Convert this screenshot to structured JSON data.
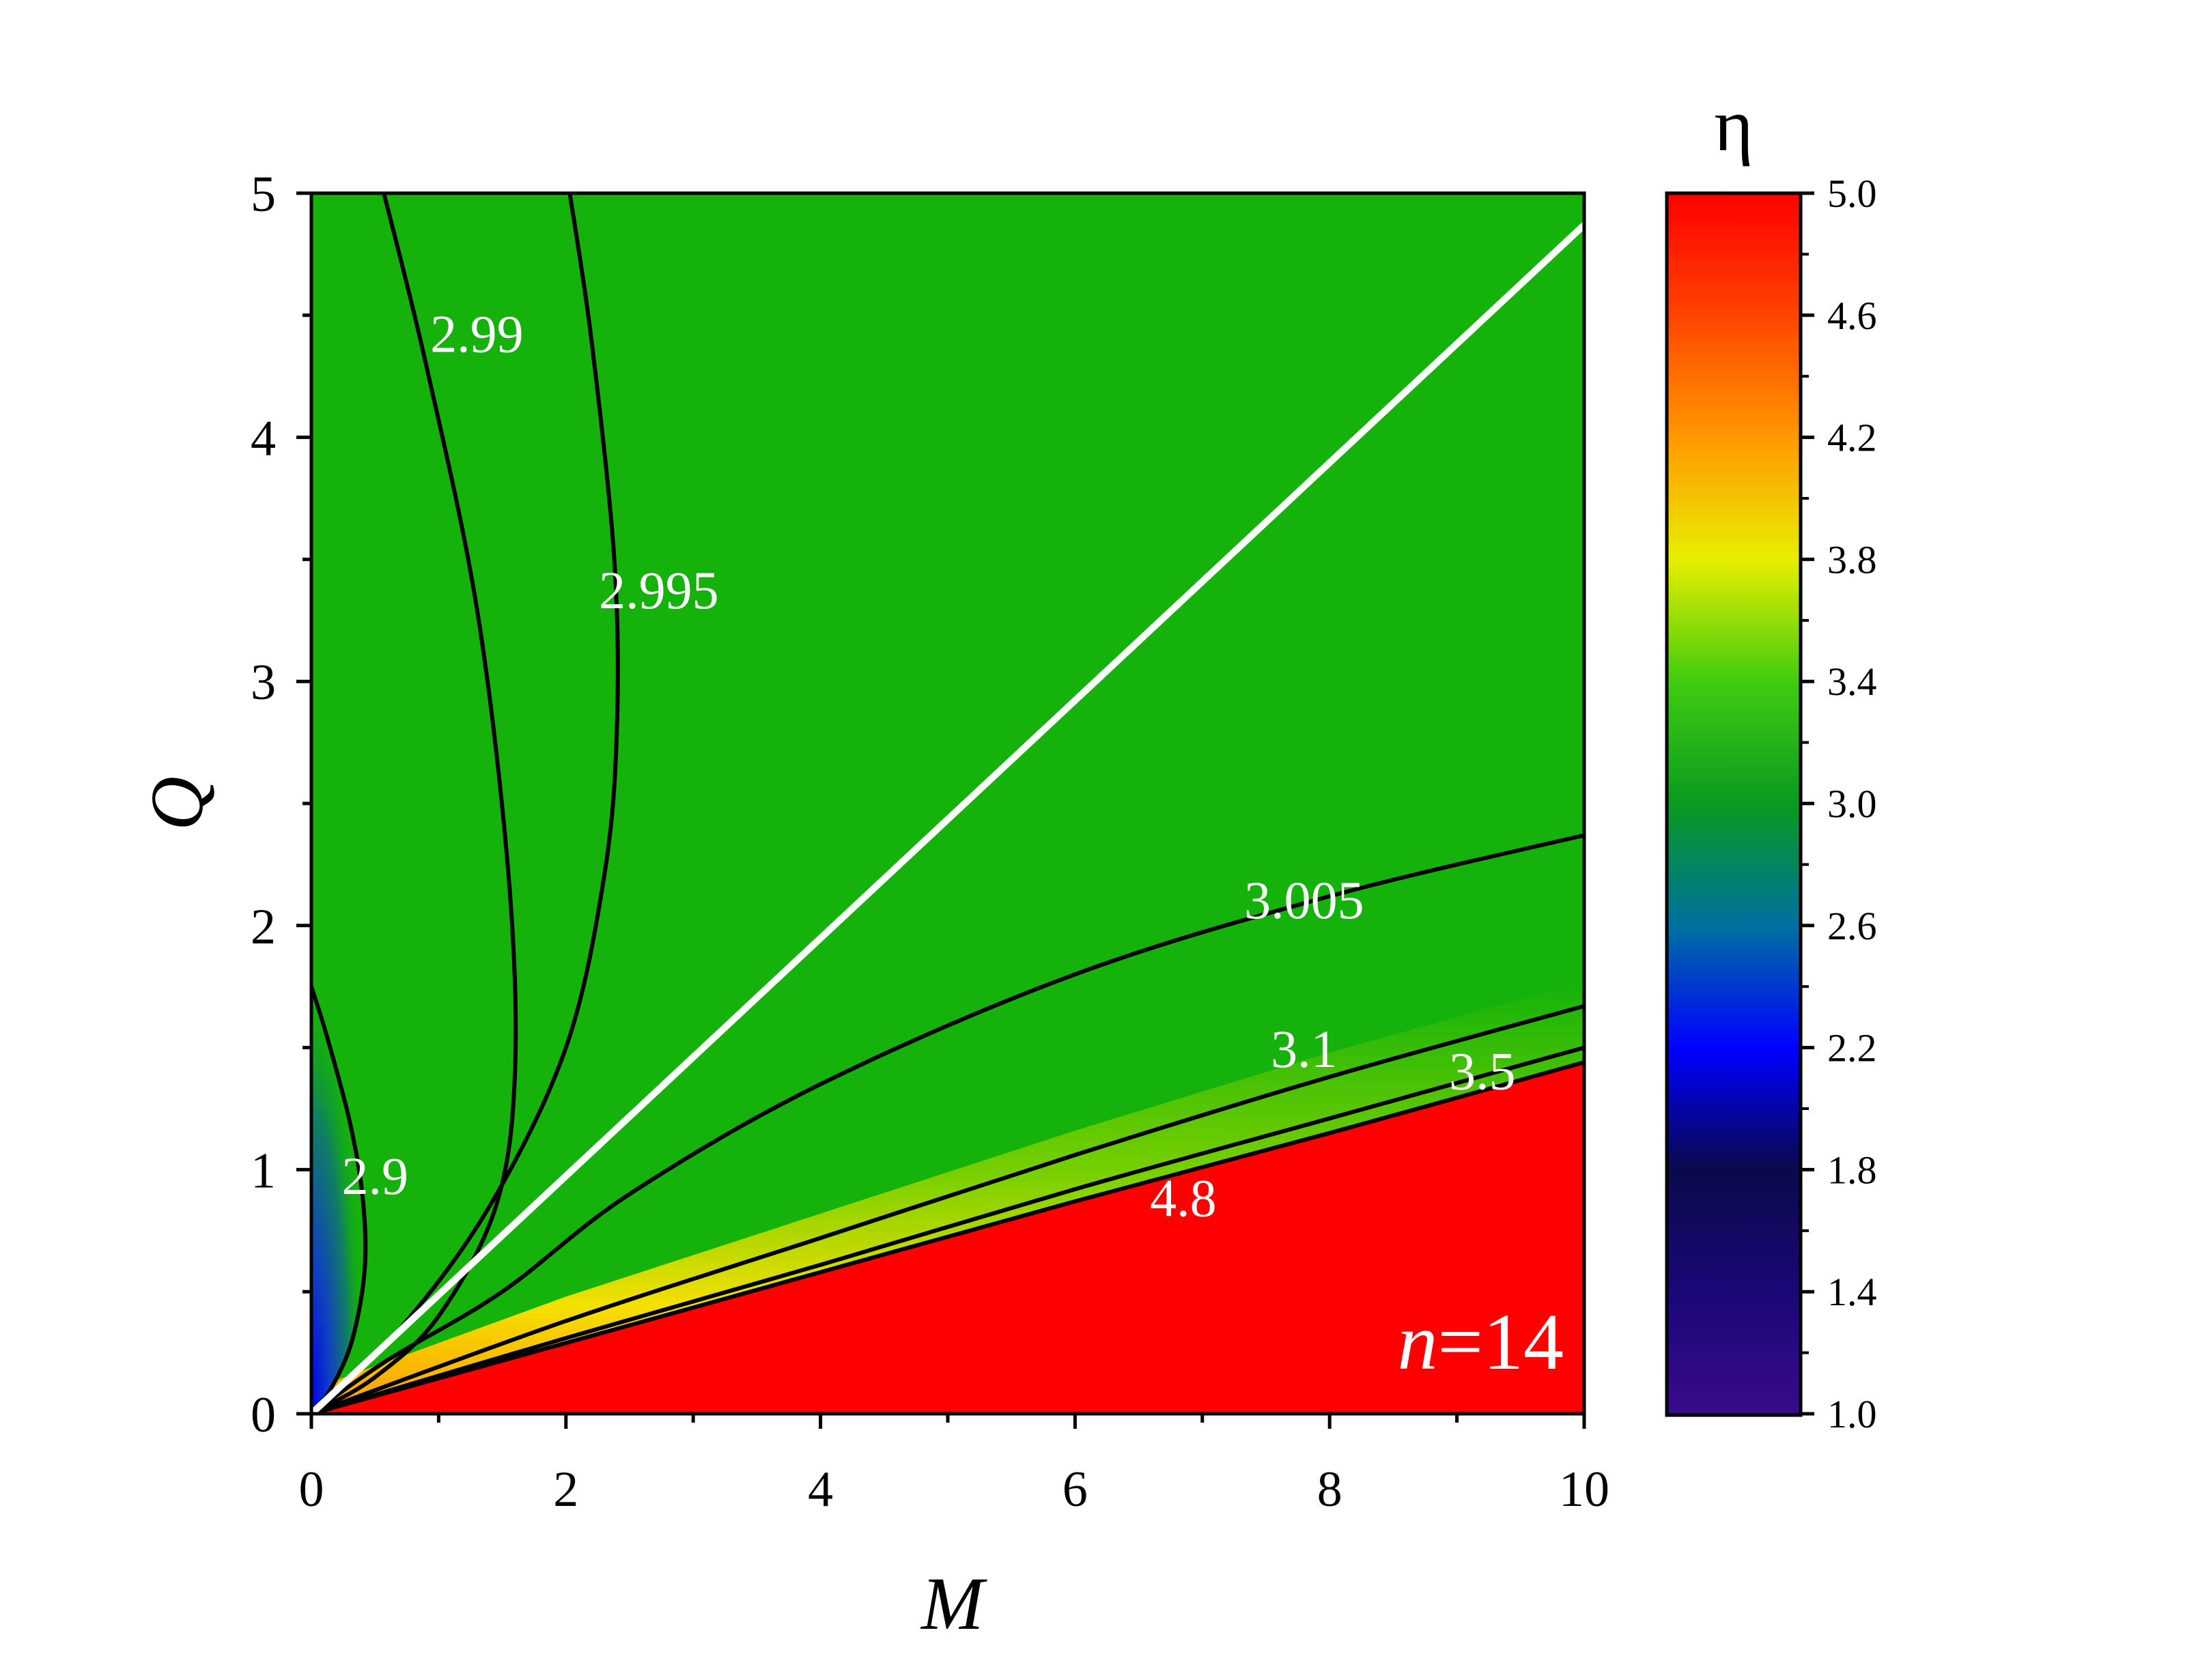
{
  "chart_data": {
    "type": "heatmap",
    "xlabel": "M",
    "ylabel": "Q",
    "xlim": [
      0,
      10
    ],
    "ylim": [
      0,
      5
    ],
    "xticks": [
      "0",
      "2",
      "4",
      "6",
      "8",
      "10"
    ],
    "yticks": [
      "0",
      "1",
      "2",
      "3",
      "4",
      "5"
    ],
    "colorbar": {
      "title": "η",
      "range": [
        1.0,
        5.0
      ],
      "ticks": [
        "1.0",
        "1.4",
        "1.8",
        "2.2",
        "2.6",
        "3.0",
        "3.4",
        "3.8",
        "4.2",
        "4.6",
        "5.0"
      ]
    },
    "colors": {
      "green": "#14b20b",
      "red": "#ff0000",
      "white_line": "#ffffff",
      "contour": "#000000"
    },
    "contours": [
      {
        "level": "2.9",
        "label_at": [
          0.5,
          0.95
        ],
        "points": [
          [
            0.0,
            1.75
          ],
          [
            0.12,
            1.55
          ],
          [
            0.3,
            1.2
          ],
          [
            0.4,
            0.9
          ],
          [
            0.42,
            0.6
          ],
          [
            0.32,
            0.3
          ],
          [
            0.15,
            0.1
          ],
          [
            0.0,
            0.0
          ]
        ]
      },
      {
        "level": "2.99",
        "label_at": [
          1.3,
          4.4
        ],
        "points": [
          [
            0.57,
            5.0
          ],
          [
            0.9,
            4.3
          ],
          [
            1.3,
            3.3
          ],
          [
            1.55,
            2.2
          ],
          [
            1.6,
            1.4
          ],
          [
            1.45,
            0.85
          ],
          [
            1.0,
            0.4
          ],
          [
            0.5,
            0.15
          ],
          [
            0.0,
            0.0
          ]
        ]
      },
      {
        "level": "2.995",
        "label_at": [
          2.73,
          3.35
        ],
        "points": [
          [
            2.03,
            5.0
          ],
          [
            2.2,
            4.4
          ],
          [
            2.38,
            3.5
          ],
          [
            2.4,
            2.8
          ],
          [
            2.3,
            2.2
          ],
          [
            2.0,
            1.5
          ],
          [
            1.4,
            0.85
          ],
          [
            0.7,
            0.35
          ],
          [
            0.0,
            0.0
          ]
        ]
      },
      {
        "level": "3.005",
        "label_at": [
          7.8,
          2.08
        ],
        "points": [
          [
            0.0,
            0.0
          ],
          [
            0.6,
            0.22
          ],
          [
            1.5,
            0.5
          ],
          [
            2.5,
            0.9
          ],
          [
            4.0,
            1.35
          ],
          [
            6.0,
            1.8
          ],
          [
            8.0,
            2.12
          ],
          [
            10.0,
            2.37
          ]
        ]
      },
      {
        "level": "3.1",
        "label_at": [
          7.8,
          1.47
        ],
        "points": [
          [
            0.0,
            0.0
          ],
          [
            2.0,
            0.38
          ],
          [
            4.0,
            0.72
          ],
          [
            6.0,
            1.06
          ],
          [
            8.0,
            1.38
          ],
          [
            10.0,
            1.67
          ]
        ]
      },
      {
        "level": "3.5",
        "label_at": [
          9.2,
          1.38
        ],
        "points": [
          [
            0.0,
            0.0
          ],
          [
            2.0,
            0.31
          ],
          [
            4.0,
            0.61
          ],
          [
            6.0,
            0.92
          ],
          [
            8.0,
            1.21
          ],
          [
            10.0,
            1.5
          ]
        ]
      },
      {
        "level": "4.8",
        "label_at": [
          6.85,
          0.86
        ],
        "points": [
          [
            0.0,
            0.0
          ],
          [
            2.0,
            0.29
          ],
          [
            4.0,
            0.58
          ],
          [
            6.0,
            0.87
          ],
          [
            8.0,
            1.15
          ],
          [
            10.0,
            1.44
          ]
        ]
      }
    ],
    "white_line": [
      [
        0.0,
        0.0
      ],
      [
        10.0,
        4.87
      ]
    ],
    "annotations": [
      {
        "text": "n",
        "suffix": "=14"
      }
    ]
  }
}
